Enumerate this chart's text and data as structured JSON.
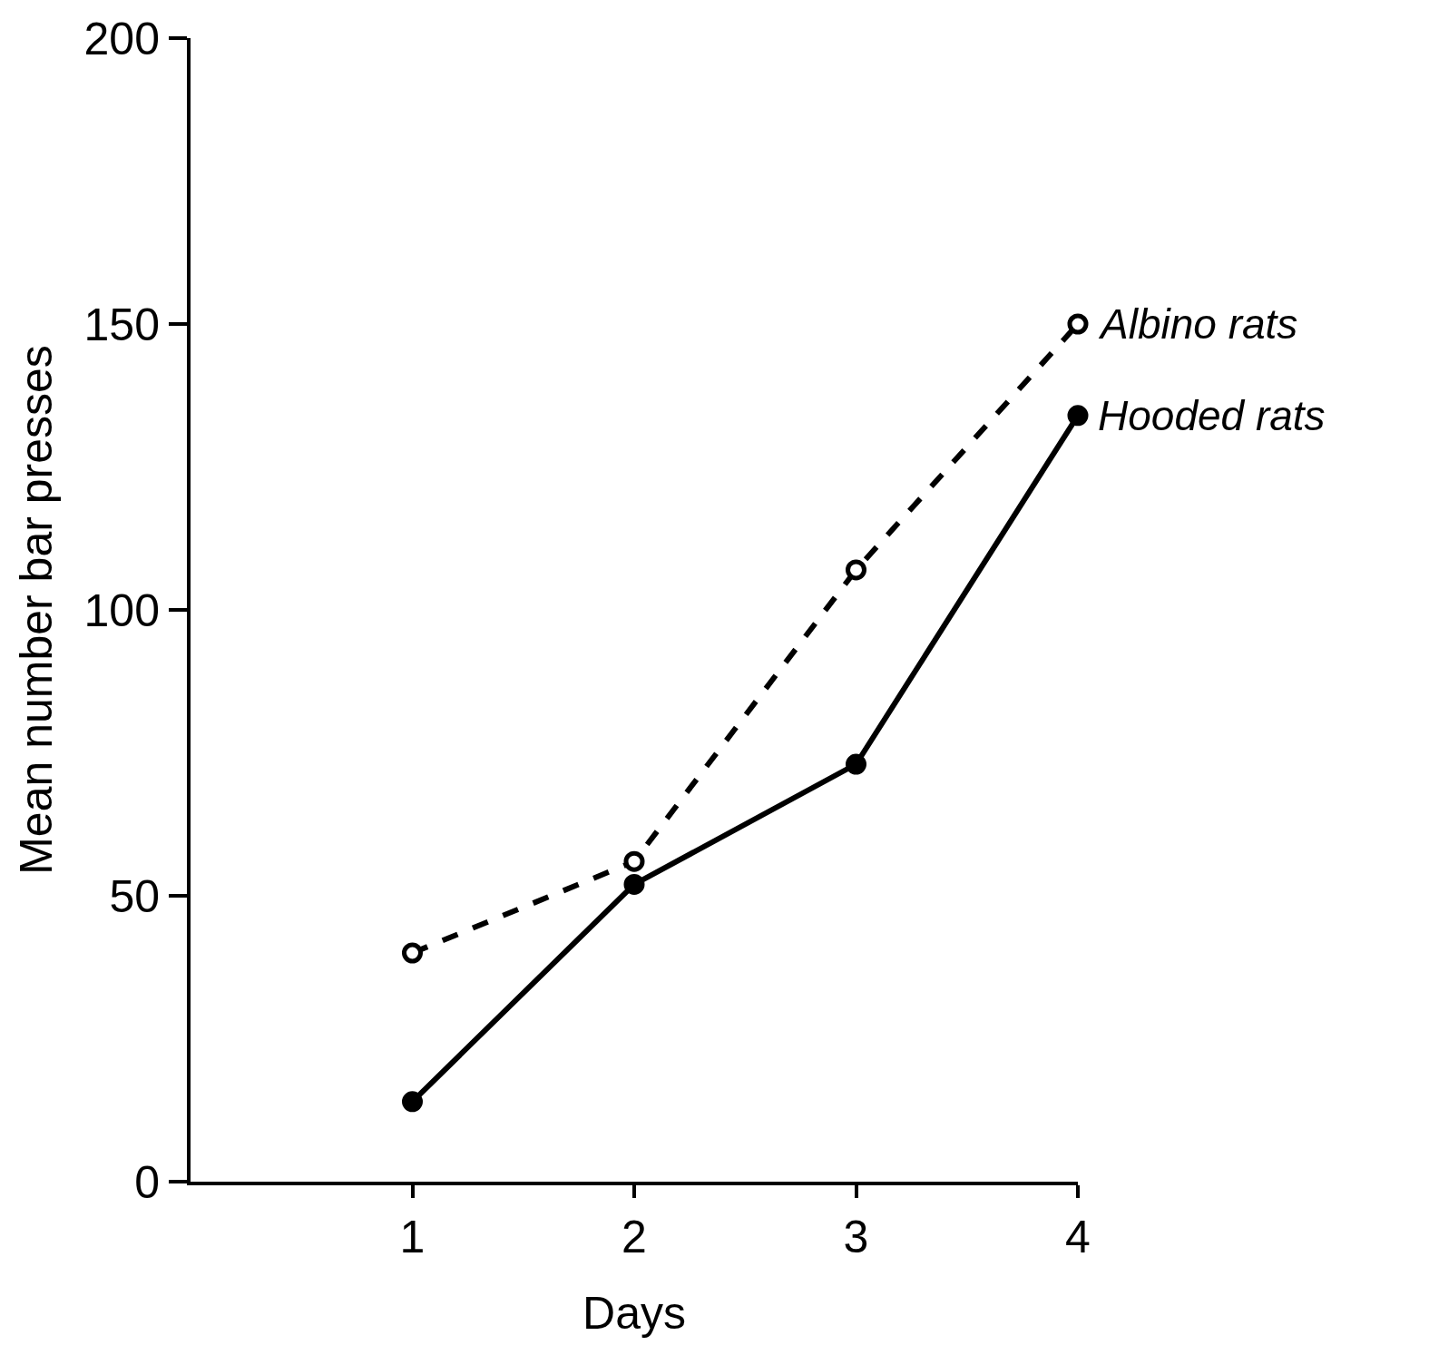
{
  "chart_data": {
    "type": "line",
    "xlabel": "Days",
    "ylabel": "Mean number bar presses",
    "x": [
      1,
      2,
      3,
      4
    ],
    "xlim": [
      0,
      4
    ],
    "xticks": [
      1,
      2,
      3,
      4
    ],
    "ylim": [
      0,
      200
    ],
    "yticks": [
      0,
      50,
      100,
      150,
      200
    ],
    "grid": false,
    "legend": false,
    "series": [
      {
        "name": "Albino rats",
        "color": "#000000",
        "values": [
          40,
          56,
          107,
          150
        ],
        "line_style": "dashed",
        "marker": "circle-open"
      },
      {
        "name": "Hooded rats",
        "color": "#000000",
        "values": [
          14,
          52,
          73,
          134
        ],
        "line_style": "solid",
        "marker": "circle"
      }
    ]
  }
}
